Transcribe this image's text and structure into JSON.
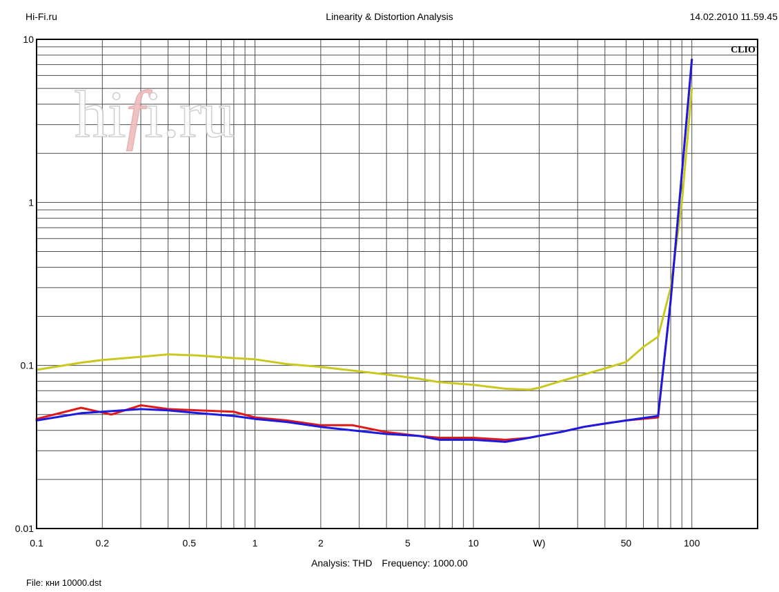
{
  "header": {
    "left": "Hi-Fi.ru",
    "center": "Linearity & Distortion Analysis",
    "right": "14.02.2010 11.59.45"
  },
  "watermark": {
    "text_a": "hi",
    "text_b": "f",
    "text_c": "i.ru"
  },
  "brand": "CLIO",
  "chart_data": {
    "type": "line",
    "title": "Linearity & Distortion Analysis",
    "xscale": "log",
    "yscale": "log",
    "xlim": [
      0.1,
      200
    ],
    "ylim": [
      0.01,
      10
    ],
    "grid": true,
    "x_tick_labels": [
      "0.1",
      "0.2",
      "0.5",
      "1",
      "2",
      "5",
      "10",
      "W)",
      "50",
      "100"
    ],
    "y_tick_labels": [
      "10",
      "1",
      "0.1",
      "0.01"
    ],
    "series": [
      {
        "color": "#c8c81e",
        "x": [
          0.1,
          0.16,
          0.2,
          0.3,
          0.4,
          0.55,
          0.8,
          1.0,
          1.4,
          2.0,
          2.8,
          4.0,
          5.6,
          7.0,
          10,
          14,
          18,
          20,
          25,
          32,
          40,
          50,
          60,
          70,
          80,
          90,
          100
        ],
        "y": [
          0.094,
          0.104,
          0.108,
          0.113,
          0.117,
          0.115,
          0.111,
          0.109,
          0.102,
          0.098,
          0.093,
          0.088,
          0.083,
          0.079,
          0.076,
          0.072,
          0.071,
          0.073,
          0.08,
          0.088,
          0.096,
          0.105,
          0.13,
          0.15,
          0.3,
          1.0,
          5.0
        ]
      },
      {
        "color": "#e01818",
        "x": [
          0.1,
          0.16,
          0.22,
          0.3,
          0.4,
          0.55,
          0.8,
          1.0,
          1.4,
          2.0,
          2.8,
          4.0,
          5.6,
          7.0,
          10,
          14,
          18,
          20,
          25,
          32,
          40,
          50,
          70,
          80,
          90,
          100
        ],
        "y": [
          0.047,
          0.055,
          0.05,
          0.057,
          0.054,
          0.053,
          0.052,
          0.048,
          0.046,
          0.043,
          0.043,
          0.039,
          0.037,
          0.036,
          0.036,
          0.035,
          0.036,
          0.037,
          0.039,
          0.042,
          0.044,
          0.046,
          0.048,
          0.25,
          1.5,
          7.5
        ]
      },
      {
        "color": "#1a1ae0",
        "x": [
          0.1,
          0.16,
          0.2,
          0.3,
          0.4,
          0.55,
          0.8,
          1.0,
          1.4,
          2.0,
          2.8,
          4.0,
          5.6,
          7.0,
          10,
          14,
          18,
          20,
          25,
          32,
          40,
          50,
          70,
          80,
          90,
          100
        ],
        "y": [
          0.046,
          0.051,
          0.052,
          0.054,
          0.053,
          0.051,
          0.049,
          0.047,
          0.045,
          0.042,
          0.04,
          0.038,
          0.037,
          0.035,
          0.035,
          0.034,
          0.036,
          0.037,
          0.039,
          0.042,
          0.044,
          0.046,
          0.049,
          0.25,
          1.5,
          7.5
        ]
      }
    ]
  },
  "footer": {
    "analysis_label": "Analysis: THD",
    "frequency_label": "Frequency: 1000.00",
    "file_label": "File: кни 10000.dst"
  }
}
